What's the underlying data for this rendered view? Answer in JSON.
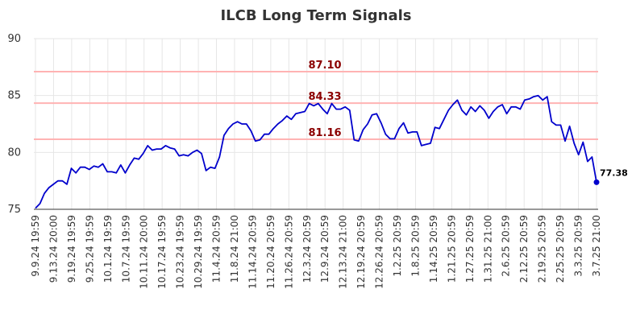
{
  "chart_data": {
    "type": "line",
    "title": "ILCB Long Term Signals",
    "xlabel": "",
    "ylabel": "",
    "ylim": [
      75,
      90
    ],
    "yticks": [
      75,
      80,
      85,
      90
    ],
    "grid": true,
    "x_tick_labels": [
      "9.9.24 19:59",
      "9.13.24 20:00",
      "9.19.24 19:59",
      "9.25.24 19:59",
      "10.1.24 19:59",
      "10.7.24 19:59",
      "10.11.24 20:00",
      "10.17.24 19:59",
      "10.23.24 19:59",
      "10.29.24 19:59",
      "11.4.24 20:59",
      "11.8.24 21:00",
      "11.14.24 20:59",
      "11.20.24 20:59",
      "11.26.24 20:59",
      "12.3.24 20:59",
      "12.9.24 20:59",
      "12.13.24 21:00",
      "12.19.24 20:59",
      "12.26.24 20:59",
      "1.2.25 20:59",
      "1.8.25 20:59",
      "1.14.25 20:59",
      "1.21.25 20:59",
      "1.27.25 20:59",
      "1.31.25 21:00",
      "2.6.25 20:59",
      "2.12.25 20:59",
      "2.19.25 20:59",
      "2.25.25 20:59",
      "3.3.25 20:59",
      "3.7.25 21:00"
    ],
    "reference_lines": [
      {
        "value": 87.1,
        "label": "87.10"
      },
      {
        "value": 84.33,
        "label": "84.33"
      },
      {
        "value": 81.16,
        "label": "81.16"
      }
    ],
    "last_value_label": "77.38",
    "series": [
      {
        "color": "#0000cc",
        "values": [
          75.1,
          75.5,
          76.4,
          76.9,
          77.2,
          77.5,
          77.5,
          77.2,
          78.6,
          78.2,
          78.7,
          78.7,
          78.5,
          78.8,
          78.7,
          79.0,
          78.3,
          78.3,
          78.2,
          78.9,
          78.2,
          78.9,
          79.5,
          79.4,
          79.9,
          80.6,
          80.2,
          80.3,
          80.3,
          80.6,
          80.4,
          80.3,
          79.7,
          79.8,
          79.7,
          80.0,
          80.2,
          79.9,
          78.4,
          78.7,
          78.6,
          79.6,
          81.5,
          82.1,
          82.5,
          82.7,
          82.5,
          82.5,
          81.9,
          81.0,
          81.1,
          81.6,
          81.6,
          82.1,
          82.5,
          82.8,
          83.2,
          82.9,
          83.4,
          83.5,
          83.6,
          84.3,
          84.1,
          84.3,
          83.8,
          83.4,
          84.3,
          83.8,
          83.8,
          84.0,
          83.7,
          81.1,
          81.0,
          82.0,
          82.5,
          83.3,
          83.4,
          82.6,
          81.6,
          81.2,
          81.2,
          82.1,
          82.6,
          81.7,
          81.8,
          81.8,
          80.6,
          80.7,
          80.8,
          82.2,
          82.1,
          82.9,
          83.7,
          84.2,
          84.6,
          83.7,
          83.3,
          84.0,
          83.6,
          84.1,
          83.7,
          83.0,
          83.6,
          84.0,
          84.2,
          83.4,
          84.0,
          84.0,
          83.8,
          84.6,
          84.7,
          84.9,
          85.0,
          84.6,
          84.9,
          82.7,
          82.4,
          82.4,
          81.0,
          82.3,
          80.8,
          79.8,
          80.9,
          79.2,
          79.6,
          77.38
        ]
      }
    ]
  }
}
